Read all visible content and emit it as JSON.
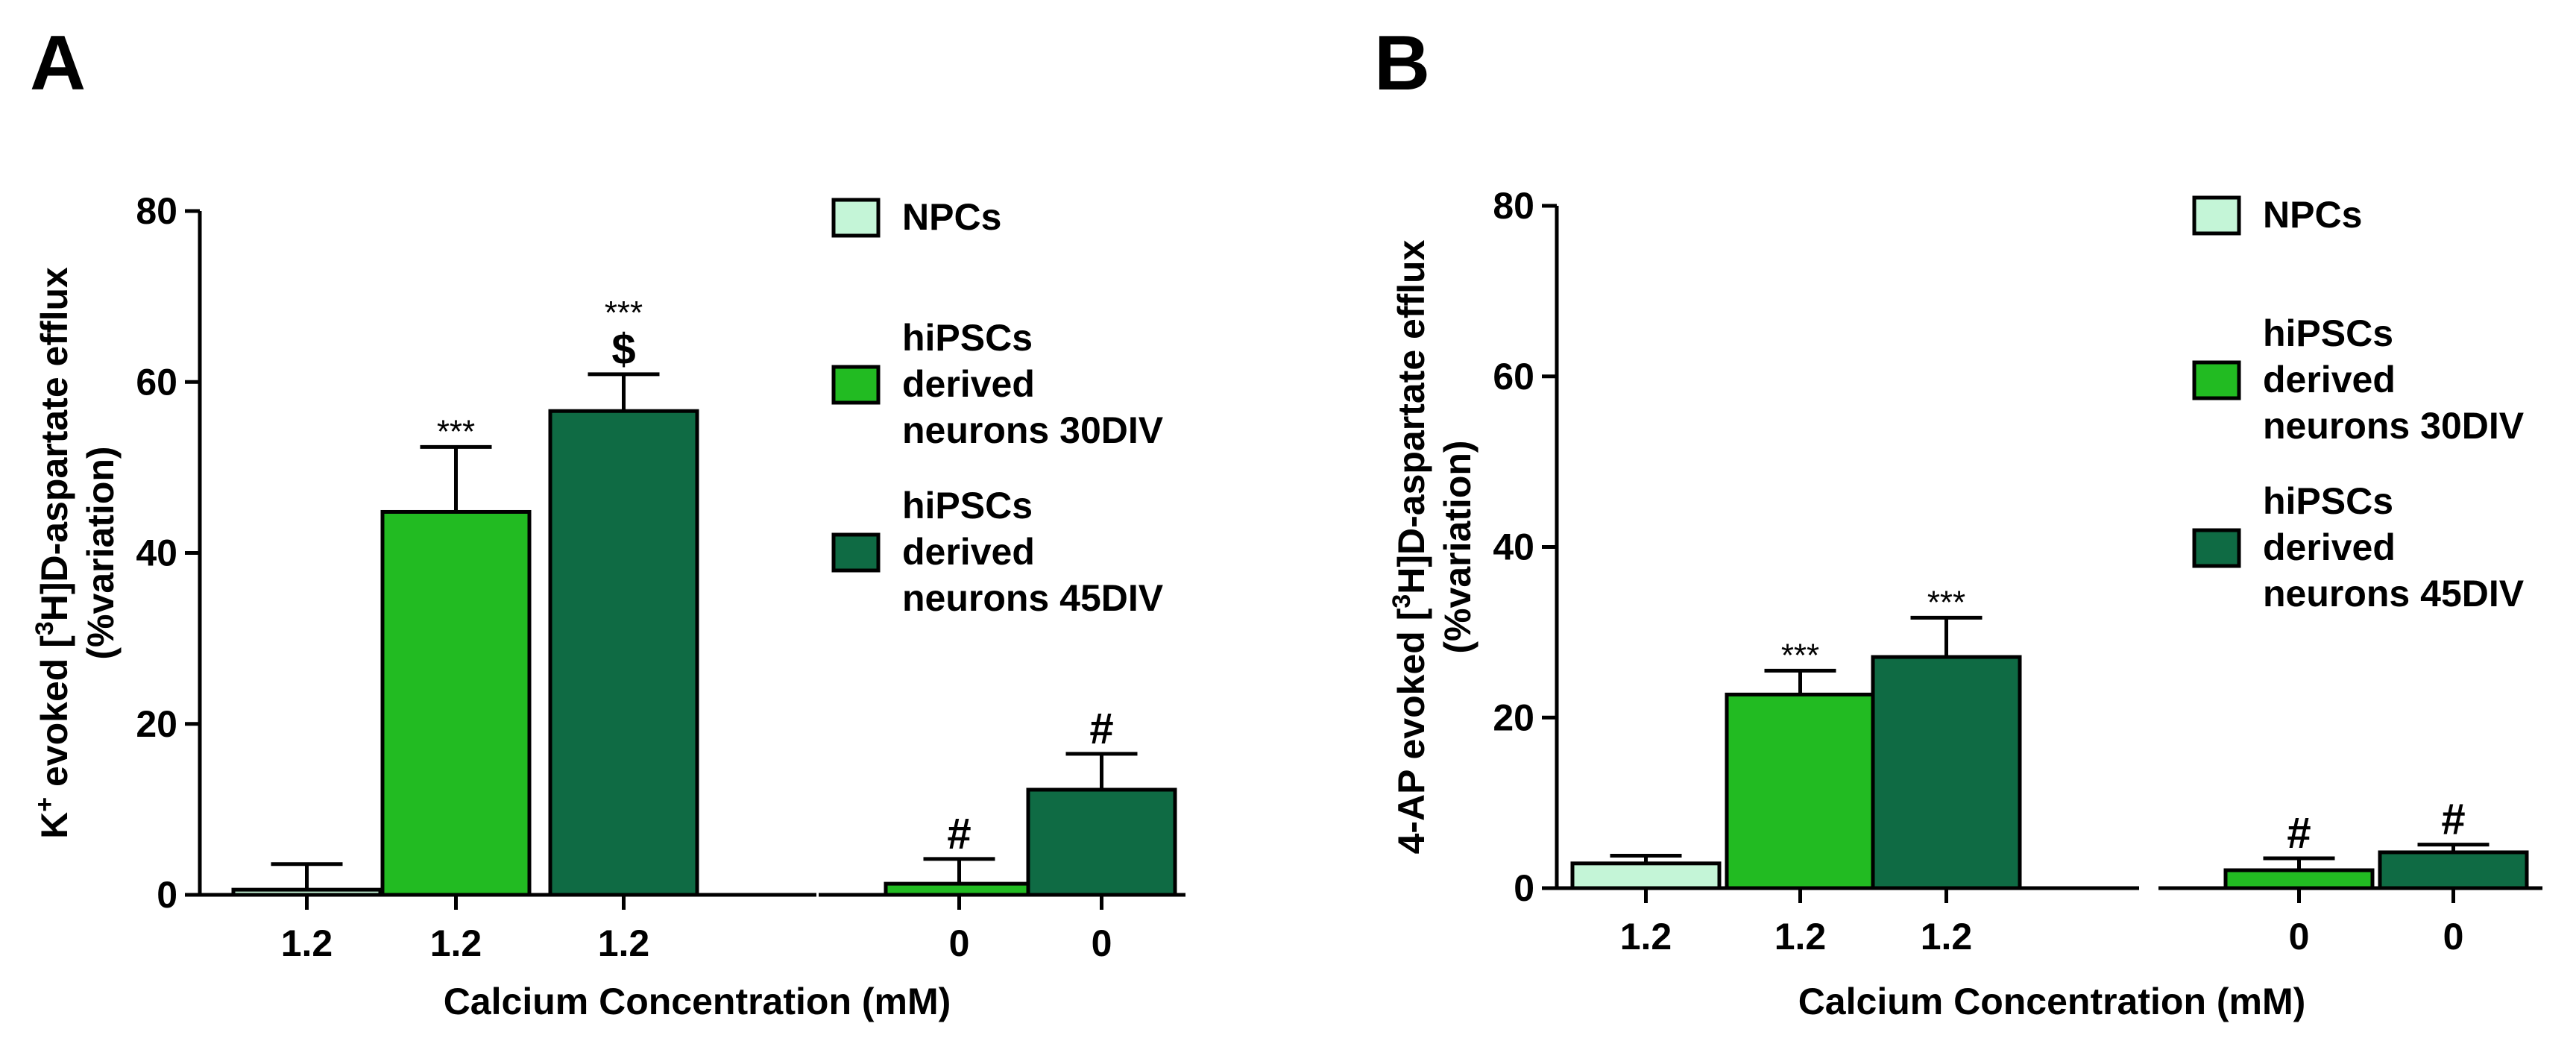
{
  "chart_data": [
    {
      "panel": "A",
      "type": "bar",
      "ylabel_line1": "K",
      "ylabel_sup_plus": "+",
      "ylabel_middle": " evoked [",
      "ylabel_sup_3": "3",
      "ylabel_end": "H]D-aspartate efflux",
      "ylabel_line2": "(%variation)",
      "xlabel": "Calcium Concentration (mM)",
      "ylim": [
        0,
        80
      ],
      "yticks": [
        0,
        20,
        40,
        60,
        80
      ],
      "legend": [
        {
          "label_lines": [
            "NPCs"
          ],
          "color": "#c4f5d7"
        },
        {
          "label_lines": [
            "hiPSCs",
            "derived",
            "neurons 30DIV"
          ],
          "color": "#22bb22"
        },
        {
          "label_lines": [
            "hiPSCs",
            "derived",
            "neurons 45DIV"
          ],
          "color": "#0f6b44"
        }
      ],
      "bars": [
        {
          "category": "1.2",
          "series": "NPCs",
          "color": "#c4f5d7",
          "value": 0.6,
          "error": 3.0,
          "annotations": []
        },
        {
          "category": "1.2",
          "series": "hiPSCs derived neurons 30DIV",
          "color": "#22bb22",
          "value": 44.8,
          "error": 7.6,
          "annotations": [
            "***"
          ]
        },
        {
          "category": "1.2",
          "series": "hiPSCs derived neurons 45DIV",
          "color": "#0f6b44",
          "value": 56.6,
          "error": 4.3,
          "annotations": [
            "$",
            "***"
          ]
        },
        {
          "category": "0",
          "series": "hiPSCs derived neurons 30DIV",
          "color": "#22bb22",
          "value": 1.3,
          "error": 2.9,
          "annotations": [
            "#"
          ]
        },
        {
          "category": "0",
          "series": "hiPSCs derived neurons 45DIV",
          "color": "#0f6b44",
          "value": 12.3,
          "error": 4.2,
          "annotations": [
            "#"
          ]
        }
      ]
    },
    {
      "panel": "B",
      "type": "bar",
      "ylabel_line1": "4-AP evoked [",
      "ylabel_sup_3": "3",
      "ylabel_end": "H]D-aspartate efflux",
      "ylabel_line2": "(%variation)",
      "xlabel": "Calcium Concentration (mM)",
      "ylim": [
        0,
        80
      ],
      "yticks": [
        0,
        20,
        40,
        60,
        80
      ],
      "legend": [
        {
          "label_lines": [
            "NPCs"
          ],
          "color": "#c4f5d7"
        },
        {
          "label_lines": [
            "hiPSCs",
            "derived",
            "neurons 30DIV"
          ],
          "color": "#22bb22"
        },
        {
          "label_lines": [
            "hiPSCs",
            "derived",
            "neurons 45DIV"
          ],
          "color": "#0f6b44"
        }
      ],
      "bars": [
        {
          "category": "1.2",
          "series": "NPCs",
          "color": "#c4f5d7",
          "value": 2.9,
          "error": 0.9,
          "annotations": []
        },
        {
          "category": "1.2",
          "series": "hiPSCs derived neurons 30DIV",
          "color": "#22bb22",
          "value": 22.7,
          "error": 2.8,
          "annotations": [
            "***"
          ]
        },
        {
          "category": "1.2",
          "series": "hiPSCs derived neurons 45DIV",
          "color": "#0f6b44",
          "value": 27.1,
          "error": 4.6,
          "annotations": [
            "***"
          ]
        },
        {
          "category": "0",
          "series": "hiPSCs derived neurons 30DIV",
          "color": "#22bb22",
          "value": 2.1,
          "error": 1.4,
          "annotations": [
            "#"
          ]
        },
        {
          "category": "0",
          "series": "hiPSCs derived neurons 45DIV",
          "color": "#0f6b44",
          "value": 4.2,
          "error": 0.9,
          "annotations": [
            "#"
          ]
        }
      ]
    }
  ]
}
